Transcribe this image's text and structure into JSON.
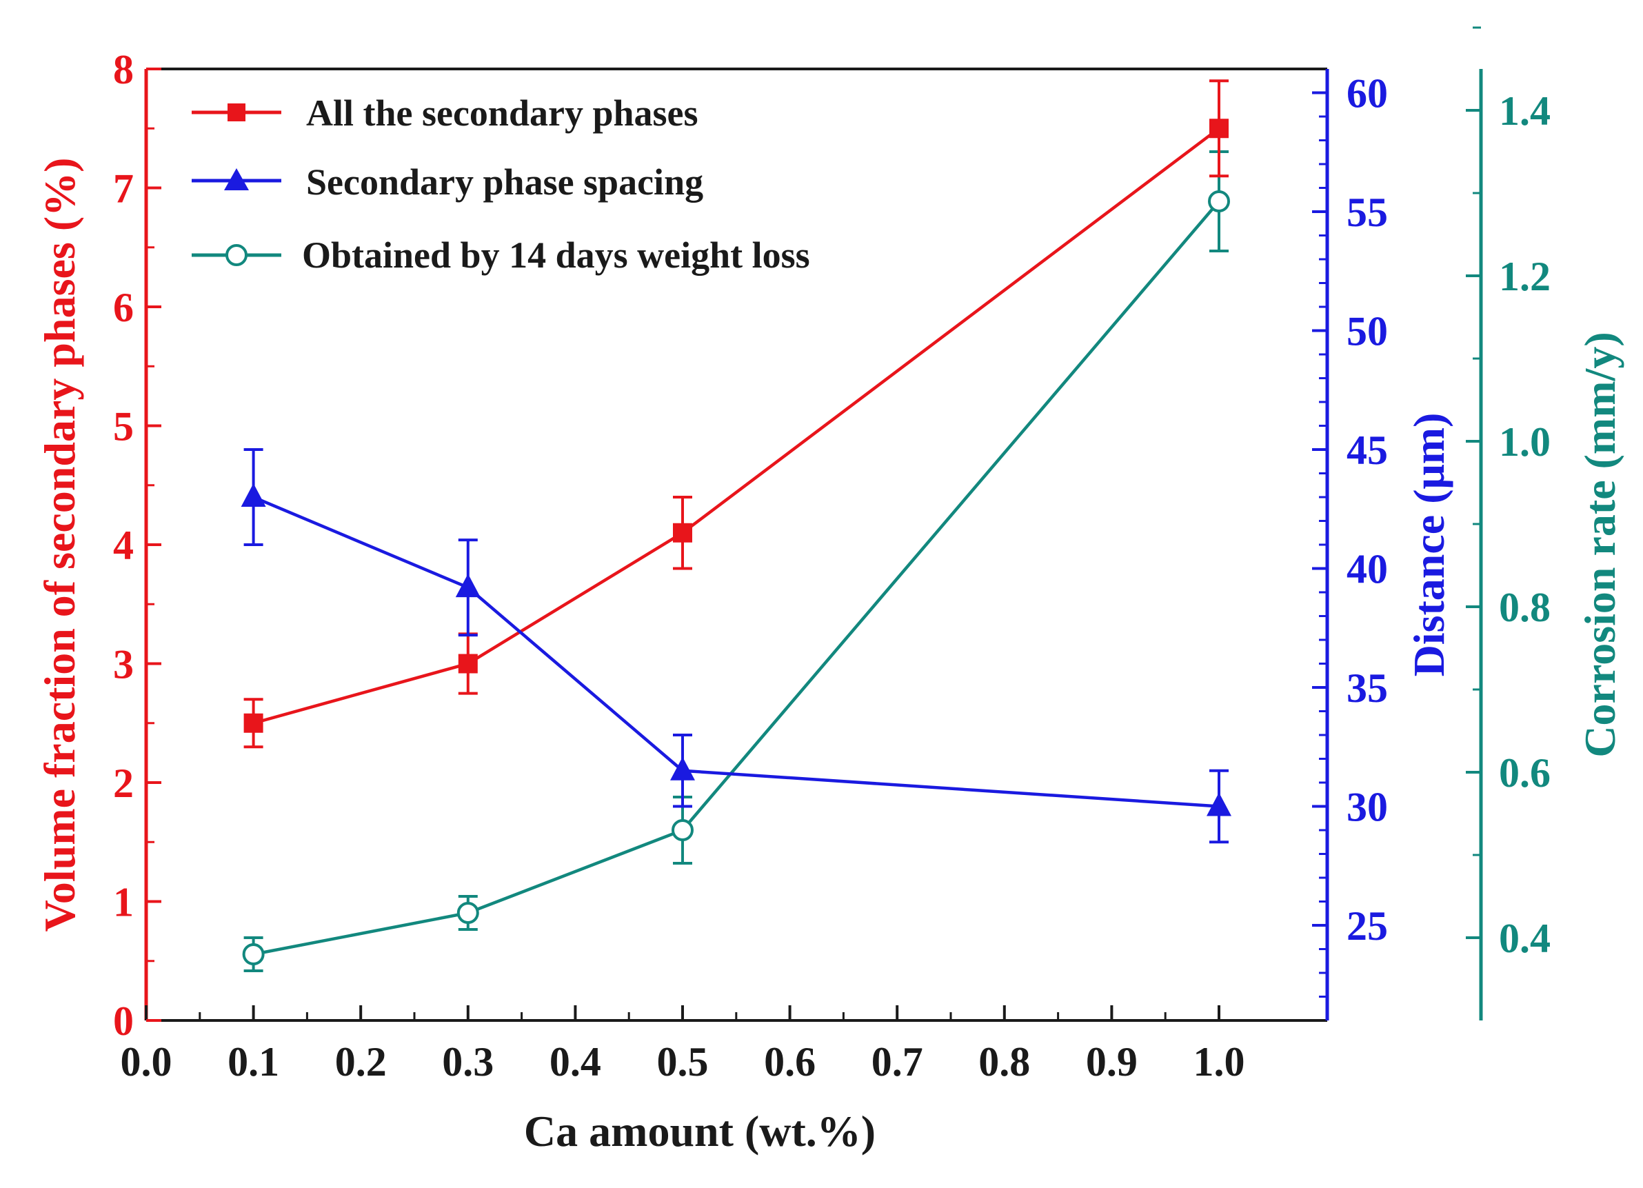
{
  "chart_data": {
    "type": "line",
    "xlabel": "Ca amount (wt.%)",
    "xlim": [
      0.0,
      1.07
    ],
    "xticks": [
      "0.0",
      "0.1",
      "0.2",
      "0.3",
      "0.4",
      "0.5",
      "0.6",
      "0.7",
      "0.8",
      "0.9",
      "1.0"
    ],
    "x": [
      0.1,
      0.3,
      0.5,
      1.0
    ],
    "axes": {
      "left": {
        "label": "Volume fraction of secondary phases (%)",
        "min": 0,
        "max": 8,
        "ticks": [
          "0",
          "1",
          "2",
          "3",
          "4",
          "5",
          "6",
          "7",
          "8"
        ],
        "color": "#e8151b"
      },
      "right1": {
        "label": "Distance (μm)",
        "min": 21,
        "max": 61,
        "ticks": [
          "25",
          "30",
          "35",
          "40",
          "45",
          "50",
          "55",
          "60"
        ],
        "color": "#1a1ae0"
      },
      "right2": {
        "label": "Corrosion rate (mm/y)",
        "min": 0.3,
        "max": 1.45,
        "ticks": [
          "0.4",
          "0.6",
          "0.8",
          "1.0",
          "1.2",
          "1.4"
        ],
        "color": "#12887e"
      }
    },
    "series": [
      {
        "name": "All the secondary phases",
        "axis": "left",
        "marker": "square",
        "color": "#e8151b",
        "values": [
          2.5,
          3.0,
          4.1,
          7.5
        ],
        "errors": [
          0.2,
          0.25,
          0.3,
          0.4
        ]
      },
      {
        "name": "Secondary phase spacing",
        "axis": "right1",
        "marker": "triangle",
        "color": "#1a1ae0",
        "values": [
          43.0,
          39.2,
          31.5,
          30.0
        ],
        "errors": [
          2.0,
          2.0,
          1.5,
          1.5
        ]
      },
      {
        "name": "Obtained by 14 days weight loss",
        "axis": "right2",
        "marker": "circle-open",
        "color": "#12887e",
        "values": [
          0.38,
          0.43,
          0.53,
          1.29
        ],
        "errors": [
          0.02,
          0.02,
          0.04,
          0.06
        ]
      }
    ]
  }
}
